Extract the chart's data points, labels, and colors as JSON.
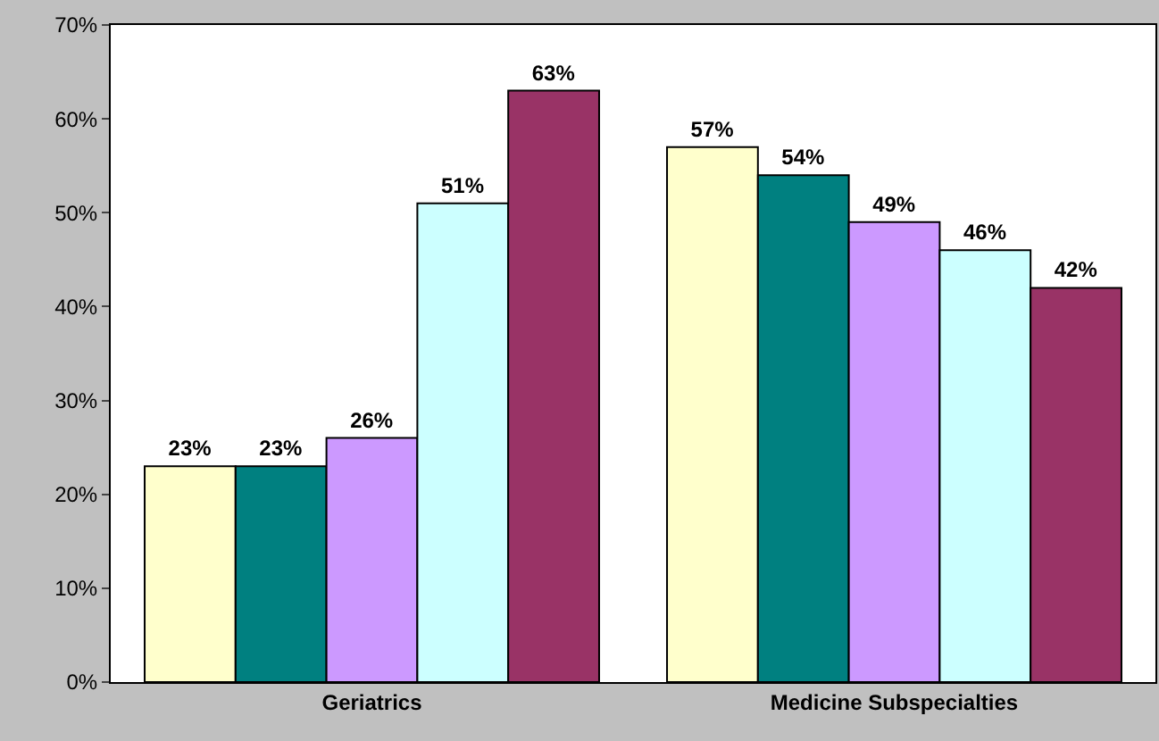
{
  "chart_data": {
    "type": "bar",
    "categories": [
      "Geriatrics",
      "Medicine Subspecialties"
    ],
    "series": [
      {
        "color": "#ffffcc",
        "values": [
          23,
          57
        ],
        "value_labels": [
          "23%",
          "57%"
        ]
      },
      {
        "color": "#008080",
        "values": [
          23,
          54
        ],
        "value_labels": [
          "23%",
          "54%"
        ]
      },
      {
        "color": "#cc99ff",
        "values": [
          26,
          49
        ],
        "value_labels": [
          "26%",
          "49%"
        ]
      },
      {
        "color": "#ccffff",
        "values": [
          51,
          46
        ],
        "value_labels": [
          "51%",
          "46%"
        ]
      },
      {
        "color": "#993366",
        "values": [
          63,
          42
        ],
        "value_labels": [
          "63%",
          "42%"
        ]
      }
    ],
    "ylim": [
      0,
      70
    ],
    "yticks": [
      {
        "value": 0,
        "label": "0%"
      },
      {
        "value": 10,
        "label": "10%"
      },
      {
        "value": 20,
        "label": "20%"
      },
      {
        "value": 30,
        "label": "30%"
      },
      {
        "value": 40,
        "label": "40%"
      },
      {
        "value": 50,
        "label": "50%"
      },
      {
        "value": 60,
        "label": "60%"
      },
      {
        "value": 70,
        "label": "70%"
      }
    ],
    "data_labels": false
  }
}
